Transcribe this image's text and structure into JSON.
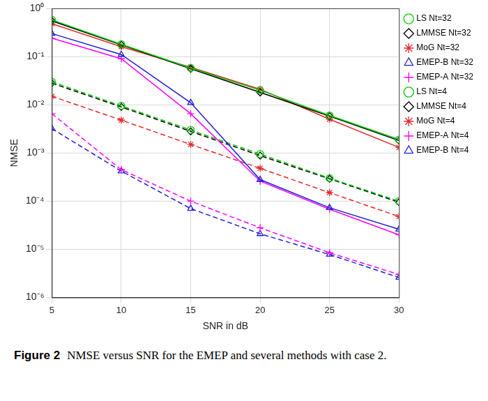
{
  "chart_data": {
    "type": "line",
    "x_label": "SNR in dB",
    "y_label": "NMSE",
    "figure_label": "Figure 2",
    "caption": "NMSE versus SNR for the EMEP and several methods with case 2.",
    "x": [
      5,
      10,
      15,
      20,
      25,
      30
    ],
    "xlim": [
      5,
      30
    ],
    "xticks": [
      5,
      10,
      15,
      20,
      25,
      30
    ],
    "ylim": [
      1e-06,
      1
    ],
    "yticks": [
      {
        "value": 1e-06,
        "label": "10⁻⁶"
      },
      {
        "value": 1e-05,
        "label": "10⁻⁵"
      },
      {
        "value": 0.0001,
        "label": "10⁻⁴"
      },
      {
        "value": 0.001,
        "label": "10⁻³"
      },
      {
        "value": 0.01,
        "label": "10⁻²"
      },
      {
        "value": 0.1,
        "label": "10⁻¹"
      },
      {
        "value": 1,
        "label": "10⁰"
      }
    ],
    "log": "y",
    "grid": true,
    "legend": "top-right",
    "series": [
      {
        "name": "LS Nt=32",
        "color": "#00cc00",
        "marker": "circle",
        "line_style": "solid",
        "values": [
          0.58,
          0.18,
          0.058,
          0.02,
          0.006,
          0.0019
        ]
      },
      {
        "name": "LMMSE Nt=32",
        "color": "#000000",
        "marker": "diamond",
        "line_style": "solid",
        "values": [
          0.55,
          0.175,
          0.056,
          0.018,
          0.0058,
          0.0018
        ]
      },
      {
        "name": "MoG Nt=32",
        "color": "#e8282a",
        "marker": "star",
        "line_style": "solid",
        "values": [
          0.48,
          0.16,
          0.06,
          0.021,
          0.005,
          0.0013
        ]
      },
      {
        "name": "EMEP-B Nt=32",
        "color": "#1f1fd6",
        "marker": "triangle",
        "line_style": "solid",
        "values": [
          0.3,
          0.11,
          0.011,
          0.00028,
          7.3e-05,
          2.6e-05
        ]
      },
      {
        "name": "EMEP-A Nt=32",
        "color": "#ff00ff",
        "marker": "plus",
        "line_style": "solid",
        "values": [
          0.24,
          0.09,
          0.0065,
          0.00026,
          6.8e-05,
          2e-05
        ]
      },
      {
        "name": "LS Nt=4",
        "color": "#00cc00",
        "marker": "circle",
        "line_style": "dashed",
        "values": [
          0.03,
          0.0095,
          0.003,
          0.00095,
          0.0003,
          0.0001
        ]
      },
      {
        "name": "LMMSE Nt=4",
        "color": "#000000",
        "marker": "diamond",
        "line_style": "dashed",
        "values": [
          0.028,
          0.009,
          0.0028,
          0.00088,
          0.00029,
          9.5e-05
        ]
      },
      {
        "name": "MoG Nt=4",
        "color": "#e8282a",
        "marker": "star",
        "line_style": "dashed",
        "values": [
          0.015,
          0.0048,
          0.0015,
          0.00048,
          0.00015,
          4.8e-05
        ]
      },
      {
        "name": "EMEP-A Nt=4",
        "color": "#ff00ff",
        "marker": "plus",
        "line_style": "dashed",
        "values": [
          0.0065,
          0.00045,
          0.0001,
          2.8e-05,
          8.5e-06,
          3e-06
        ]
      },
      {
        "name": "EMEP-B Nt=4",
        "color": "#1f1fd6",
        "marker": "triangle",
        "line_style": "dashed",
        "values": [
          0.0032,
          0.00042,
          7e-05,
          2.1e-05,
          7.8e-06,
          2.6e-06
        ]
      }
    ]
  }
}
